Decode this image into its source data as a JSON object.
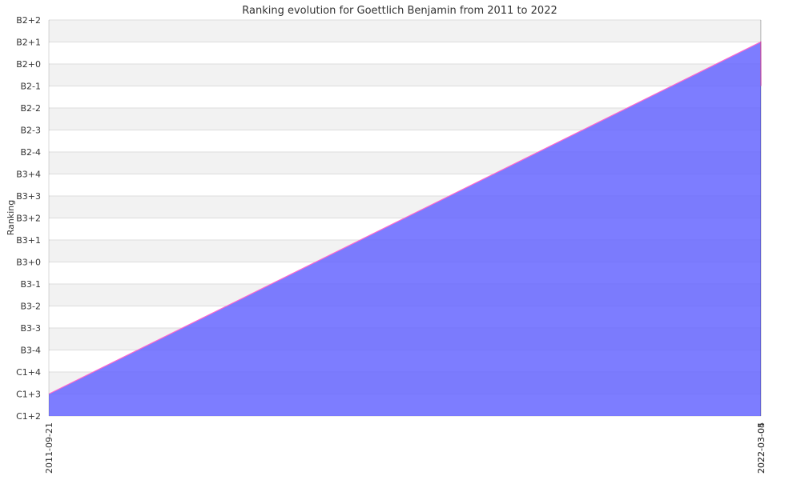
{
  "chart_data": {
    "type": "area",
    "title": "Ranking evolution for Goettlich Benjamin from 2011 to 2022",
    "xlabel": "",
    "ylabel": "Ranking",
    "x": [
      "2011-09-21",
      "2022-03-04",
      "2022-03-05"
    ],
    "y_categories": [
      "C1+2",
      "C1+3",
      "C1+4",
      "B3-4",
      "B3-3",
      "B3-2",
      "B3-1",
      "B3+0",
      "B3+1",
      "B3+2",
      "B3+3",
      "B3+4",
      "B2-4",
      "B2-3",
      "B2-2",
      "B2-1",
      "B2+0",
      "B2+1",
      "B2+2"
    ],
    "series": [
      {
        "values": [
          "C1+3",
          "B2+1",
          "B2-1"
        ]
      }
    ],
    "grid": true,
    "colors": {
      "fill": "#6666ff",
      "line": "#ff66cc",
      "band": "#f2f2f2",
      "gridline": "#dddddd"
    }
  }
}
